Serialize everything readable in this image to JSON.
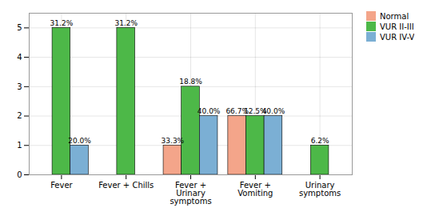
{
  "chart_data": {
    "type": "bar",
    "categories": [
      "Fever",
      "Fever + Chills",
      "Fever + Urinary symptoms",
      "Fever + Vomiting",
      "Urinary symptoms"
    ],
    "series": [
      {
        "name": "Normal",
        "color": "#F4A58A",
        "values": [
          0,
          0,
          1,
          2,
          0
        ],
        "value_labels": [
          null,
          null,
          "33.3%",
          "66.7%",
          null
        ]
      },
      {
        "name": "VUR II-III",
        "color": "#4DB848",
        "values": [
          5,
          5,
          3,
          2,
          1
        ],
        "value_labels": [
          "31.2%",
          "31.2%",
          "18.8%",
          "12.5%",
          "6.2%"
        ]
      },
      {
        "name": "VUR IV-V",
        "color": "#7BAFD4",
        "values": [
          1,
          0,
          2,
          2,
          0
        ],
        "value_labels": [
          "20.0%",
          null,
          "40.0%",
          "40.0%",
          null
        ]
      }
    ],
    "ylim": [
      0,
      5.5
    ],
    "yticks": [
      0,
      1,
      2,
      3,
      4,
      5
    ],
    "grid": true,
    "legend": "right"
  }
}
